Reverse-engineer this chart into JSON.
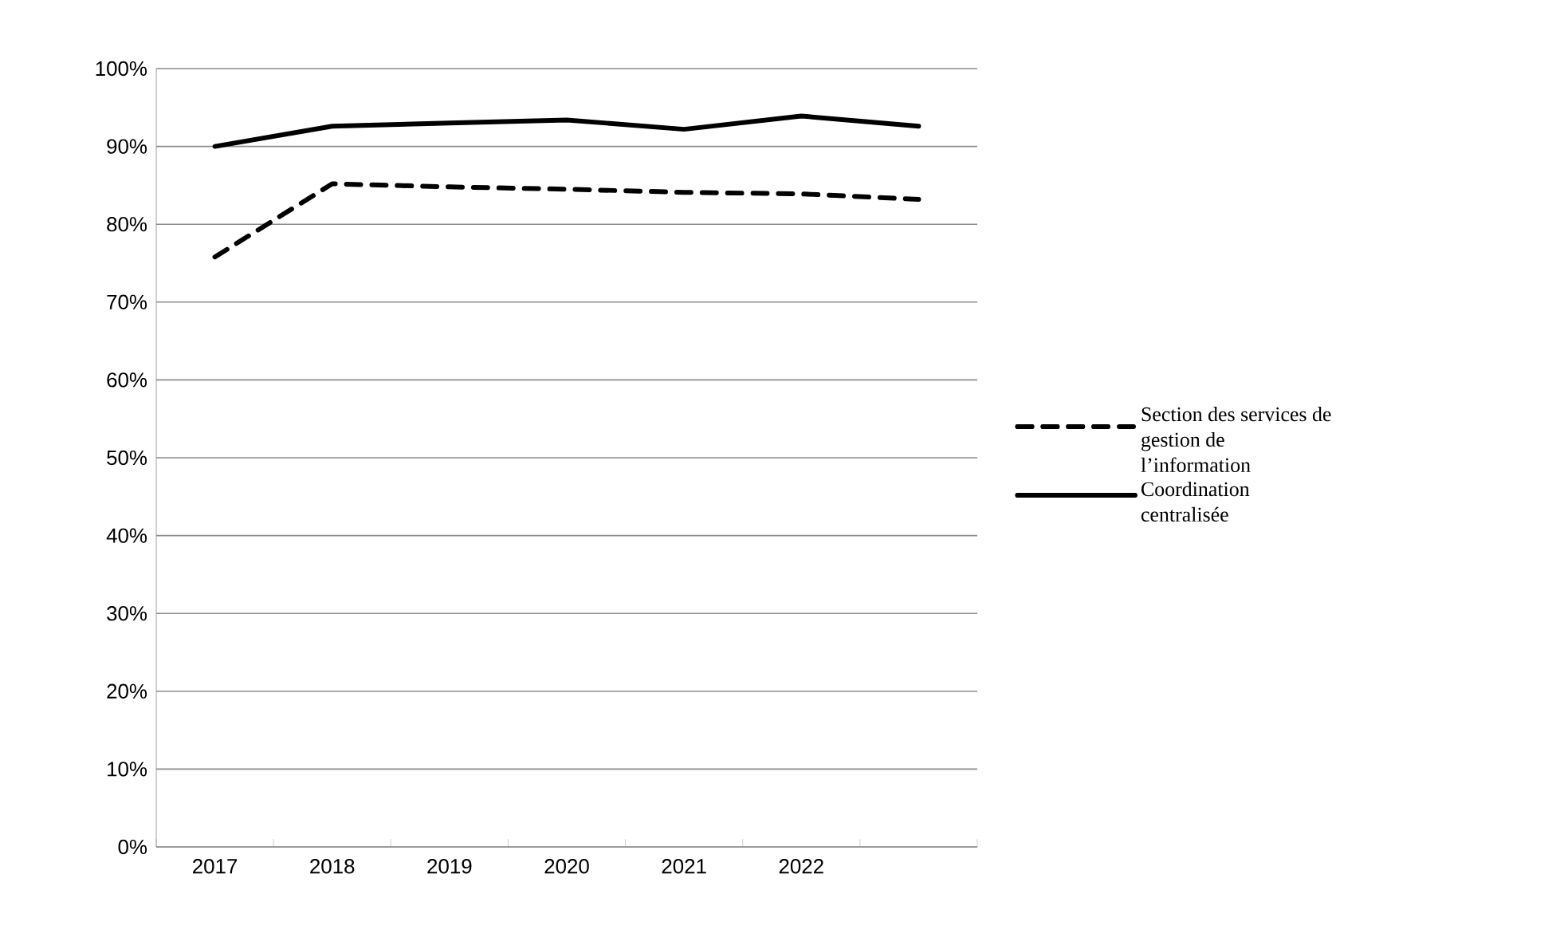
{
  "chart_data": {
    "type": "line",
    "categories": [
      "2017",
      "2018",
      "2019",
      "2020",
      "2021",
      "2022",
      null
    ],
    "series": [
      {
        "name": "Section des services de gestion de l’information",
        "color": "#000000",
        "line_style": "dashed",
        "values": [
          75.8,
          85.2,
          84.8,
          84.5,
          84.1,
          83.9,
          83.2
        ]
      },
      {
        "name": "Coordination centralisée",
        "color": "#000000",
        "line_style": "solid",
        "values": [
          90.0,
          92.6,
          93.0,
          93.4,
          92.2,
          93.9,
          92.6
        ]
      }
    ],
    "ylim": [
      0,
      100
    ],
    "yticks": [
      {
        "value": 0,
        "label": "0%"
      },
      {
        "value": 10,
        "label": "10%"
      },
      {
        "value": 20,
        "label": "20%"
      },
      {
        "value": 30,
        "label": "30%"
      },
      {
        "value": 40,
        "label": "40%"
      },
      {
        "value": 50,
        "label": "50%"
      },
      {
        "value": 60,
        "label": "60%"
      },
      {
        "value": 70,
        "label": "70%"
      },
      {
        "value": 80,
        "label": "80%"
      },
      {
        "value": 90,
        "label": "90%"
      },
      {
        "value": 100,
        "label": "100%"
      }
    ],
    "grid": "y",
    "legend": "right",
    "marker": "none"
  }
}
